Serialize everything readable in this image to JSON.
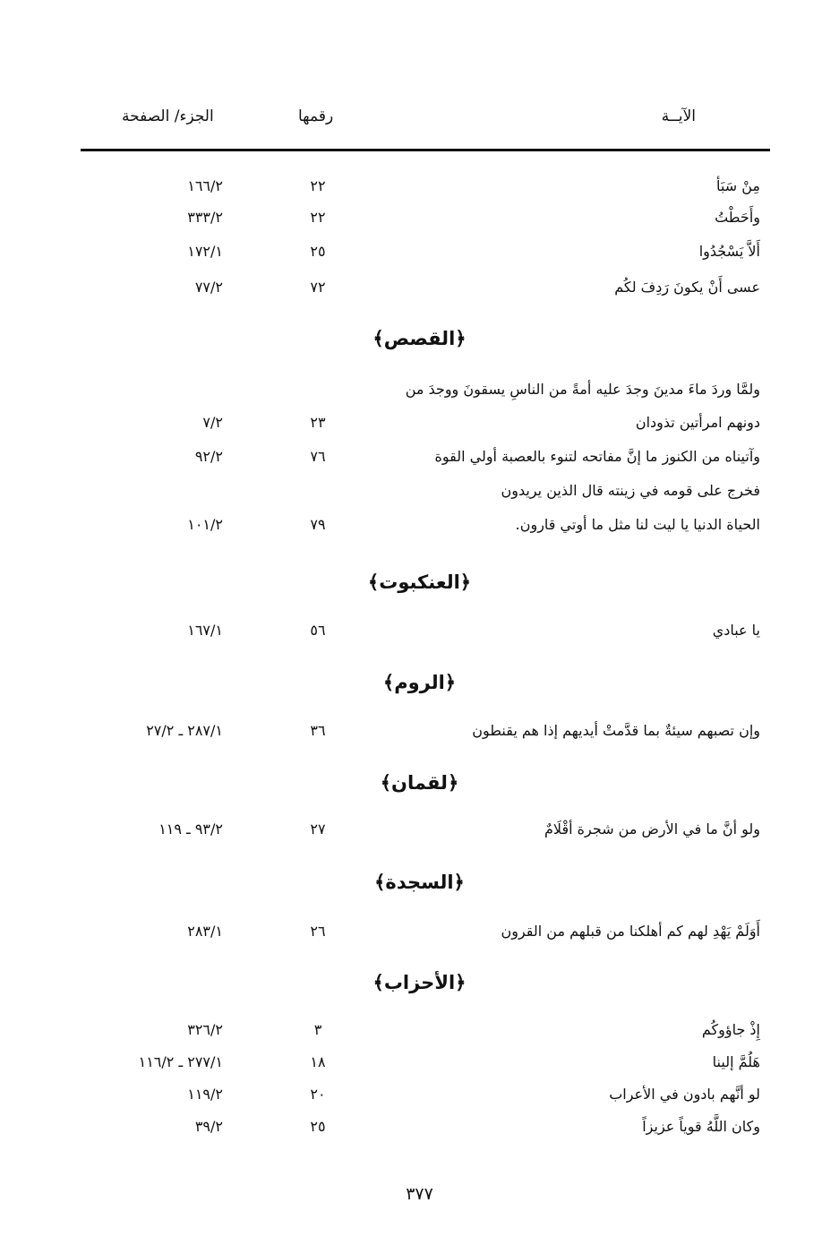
{
  "header": {
    "verse": "الآيــة",
    "number": "رقمها",
    "ref": "الجزء/ الصفحة"
  },
  "items": [
    {
      "type": "row",
      "text": "مِنْ سَبَأ",
      "num": "٢٢",
      "ref": "١٦٦/٢"
    },
    {
      "type": "row",
      "text": "وأَحَطْتُ",
      "num": "٢٢",
      "ref": "٣٣٣/٢"
    },
    {
      "type": "row",
      "text": "أَلاَّ يَسْجُدُوا",
      "num": "٢٥",
      "ref": "١٧٢/١"
    },
    {
      "type": "row",
      "text": "عسى أَنْ يكونَ رَدِفَ لكُم",
      "num": "٧٢",
      "ref": "٧٧/٢"
    },
    {
      "type": "heading",
      "text": "﴿القصص﴾"
    },
    {
      "type": "row",
      "text": "ولمَّا وردَ ماءَ مدينَ وجدَ عليه أمةً من الناسِ يسقونَ ووجدَ من",
      "num": "",
      "ref": ""
    },
    {
      "type": "row",
      "text": "دونهم امرأتين تذودان",
      "num": "٢٣",
      "ref": "٧/٢"
    },
    {
      "type": "row",
      "text": "وآتيناه من الكنوز ما إنَّ مفاتحه لتنوء بالعصبة أولي القوة",
      "num": "٧٦",
      "ref": "٩٢/٢"
    },
    {
      "type": "row",
      "text": "فخرج على قومه في زينته قال الذين يريدون",
      "num": "",
      "ref": ""
    },
    {
      "type": "row",
      "text": "الحياة الدنيا يا ليت لنا مثل ما أوتي قارون.",
      "num": "٧٩",
      "ref": "١٠١/٢"
    },
    {
      "type": "heading",
      "text": "﴿العنكبوت﴾"
    },
    {
      "type": "row",
      "text": "يا عبادي",
      "num": "٥٦",
      "ref": "١٦٧/١"
    },
    {
      "type": "heading",
      "text": "﴿الروم﴾"
    },
    {
      "type": "row",
      "text": "وإن تصبهم سيئةٌ بما قدَّمتْ أيديهم إذا هم يقنطون",
      "num": "٣٦",
      "ref": "٢٧/٢ ـ ٢٨٧/١"
    },
    {
      "type": "heading",
      "text": "﴿لقمان﴾"
    },
    {
      "type": "row",
      "text": "ولو أنَّ ما في الأرض من شجرة أقْلَامٌ",
      "num": "٢٧",
      "ref": "١١٩ ـ ٩٣/٢"
    },
    {
      "type": "heading",
      "text": "﴿السجدة﴾"
    },
    {
      "type": "row",
      "text": "أَوَلَمْ يَهْدِ لهم كم أهلكنا من قبلهم من القرون",
      "num": "٢٦",
      "ref": "٢٨٣/١"
    },
    {
      "type": "heading",
      "text": "﴿الأحزاب﴾"
    },
    {
      "type": "row",
      "text": "إِذْ جاؤوكُم",
      "num": "٣",
      "ref": "٣٢٦/٢"
    },
    {
      "type": "row",
      "text": "هَلُمَّ إلينا",
      "num": "١٨",
      "ref": "١١٦/٢ ـ ٢٧٧/١"
    },
    {
      "type": "row",
      "text": "لو أنَّهم بادون في الأعراب",
      "num": "٢٠",
      "ref": "١١٩/٢"
    },
    {
      "type": "row",
      "text": "وكان اللَّهُ قوياً عزيزاً",
      "num": "٢٥",
      "ref": "٣٩/٢"
    }
  ],
  "page_number": "٣٧٧"
}
